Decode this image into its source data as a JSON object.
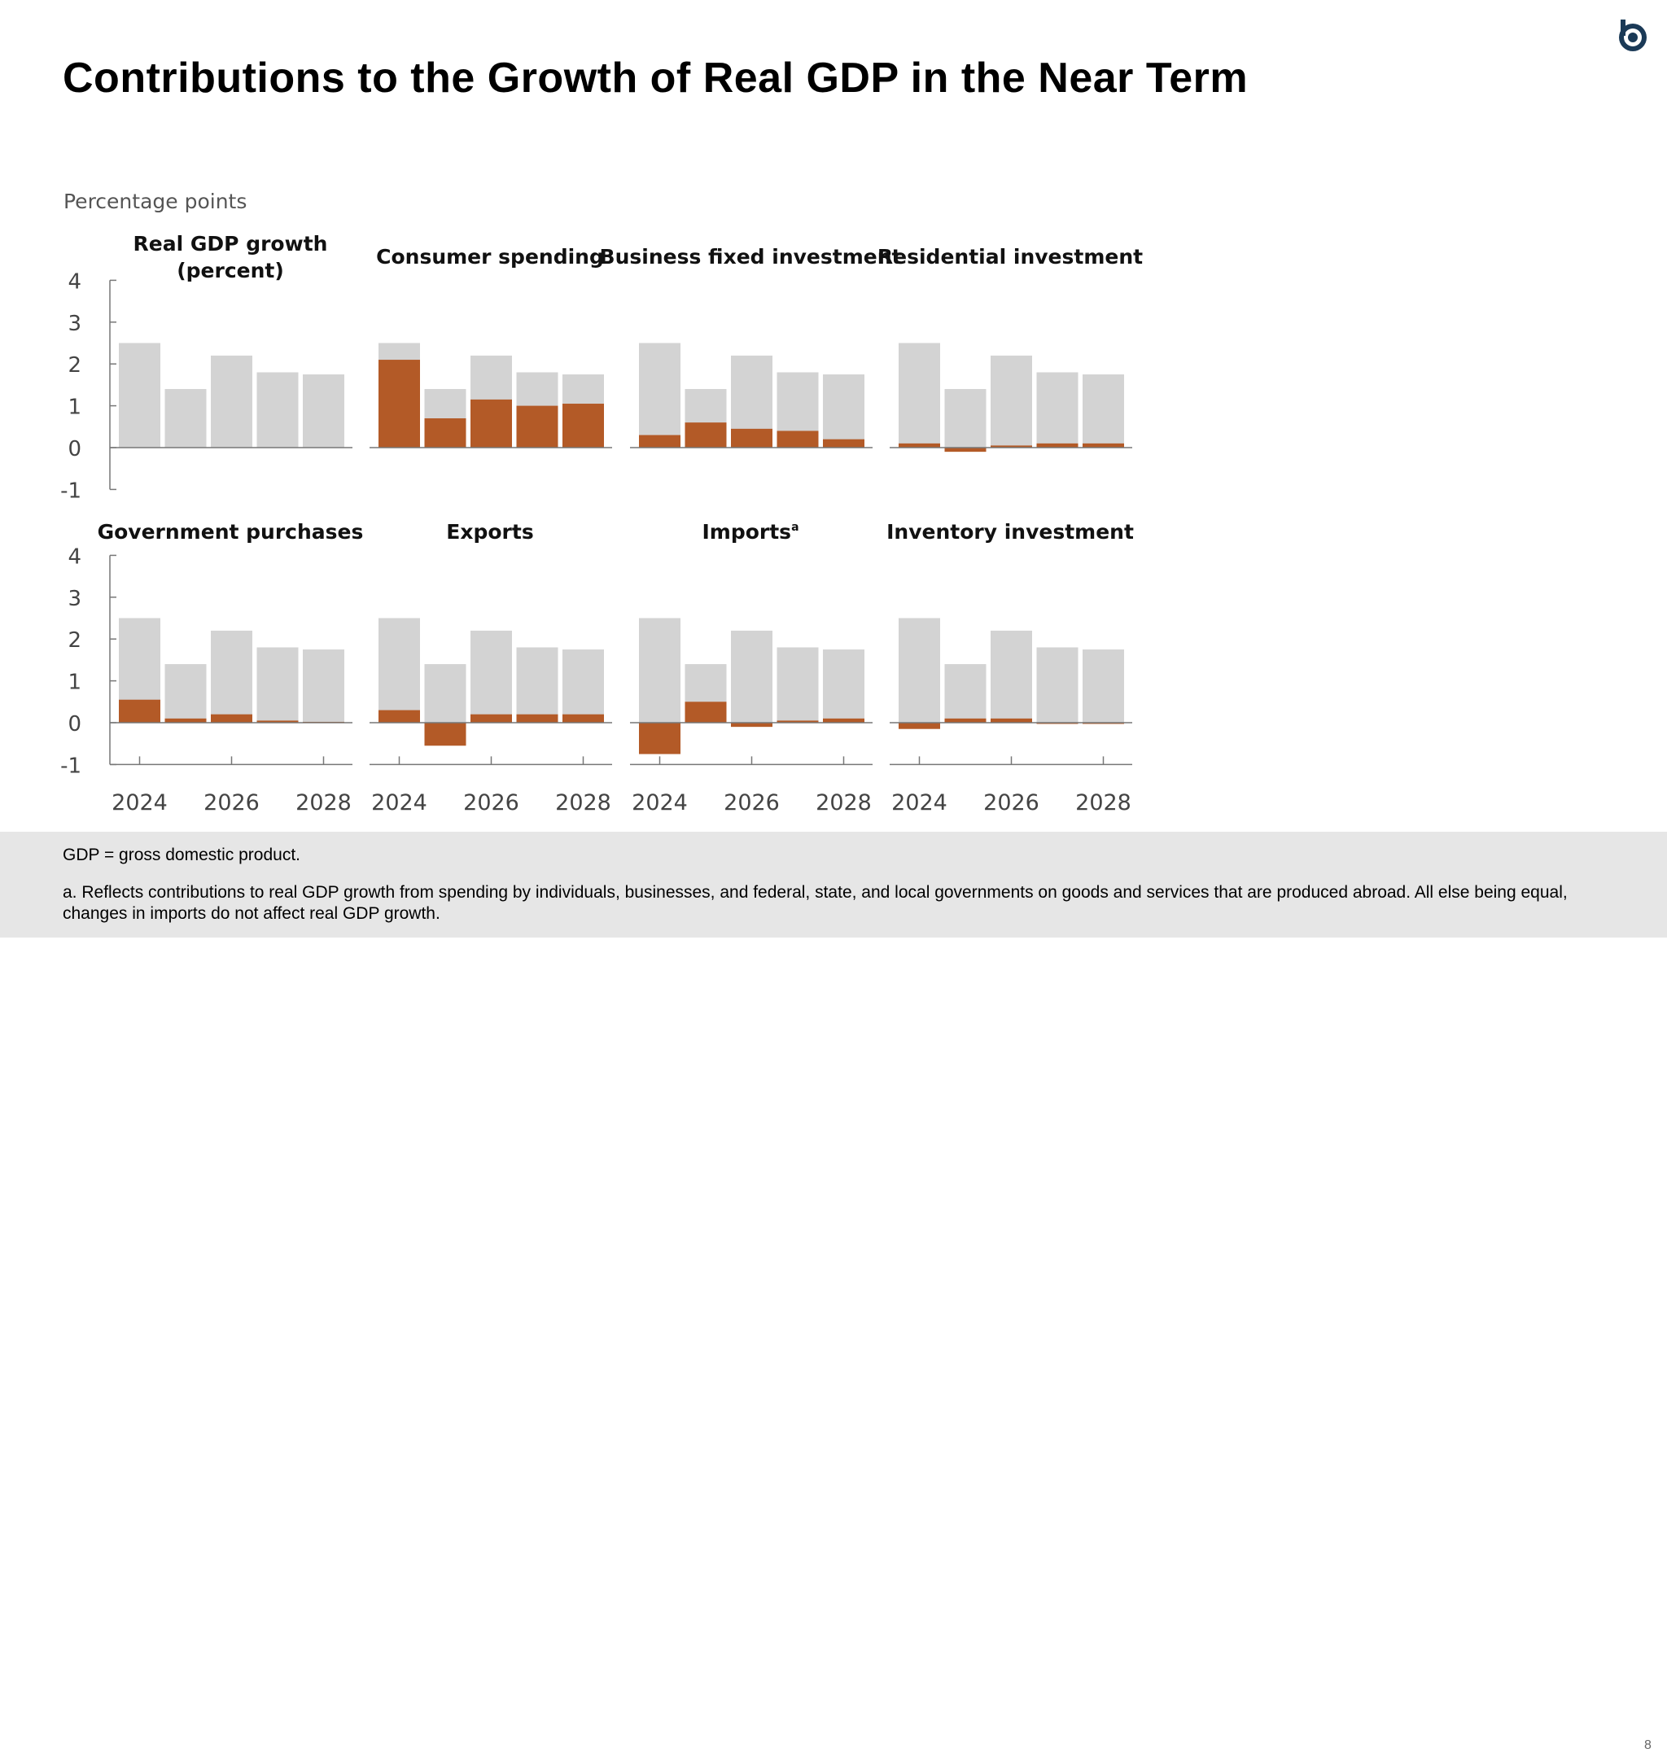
{
  "title": "Contributions to the Growth of Real GDP in the Near Term",
  "logo_color": "#1b3a57",
  "chart_data": {
    "type": "bar",
    "ylabel": "Percentage points",
    "ylim": [
      -1,
      4
    ],
    "yticks": [
      "4",
      "3",
      "2",
      "1",
      "0",
      "-1"
    ],
    "categories": [
      "2024",
      "2025",
      "2026",
      "2027",
      "2028"
    ],
    "xtick_labels": [
      "2024",
      "2026",
      "2028"
    ],
    "colors": {
      "total": "#d3d3d3",
      "contribution": "#b35a27"
    },
    "total_gdp_growth": [
      2.5,
      1.4,
      2.2,
      1.8,
      1.75
    ],
    "panels": [
      {
        "title": "Real GDP growth (percent)",
        "values": null
      },
      {
        "title": "Consumer spending",
        "values": [
          2.1,
          0.7,
          1.15,
          1.0,
          1.05
        ]
      },
      {
        "title": "Business fixed investment",
        "values": [
          0.3,
          0.6,
          0.45,
          0.4,
          0.2
        ]
      },
      {
        "title": "Residential investment",
        "values": [
          0.1,
          -0.1,
          0.05,
          0.1,
          0.1
        ]
      },
      {
        "title": "Government purchases",
        "values": [
          0.55,
          0.1,
          0.2,
          0.05,
          0.02
        ]
      },
      {
        "title": "Exports",
        "values": [
          0.3,
          -0.55,
          0.2,
          0.2,
          0.2
        ]
      },
      {
        "title": "Imports",
        "title_superscript": "a",
        "values": [
          -0.75,
          0.5,
          -0.1,
          0.05,
          0.1
        ]
      },
      {
        "title": "Inventory investment",
        "values": [
          -0.15,
          0.1,
          0.1,
          -0.02,
          0.0
        ]
      }
    ]
  },
  "footer": {
    "note1": "GDP = gross domestic product.",
    "note2": "a. Reflects contributions to real GDP growth from spending by individuals, businesses, and federal, state, and local governments on goods and services that are produced abroad. All else being equal, changes in imports do not affect real GDP growth.",
    "page_number": "8"
  }
}
